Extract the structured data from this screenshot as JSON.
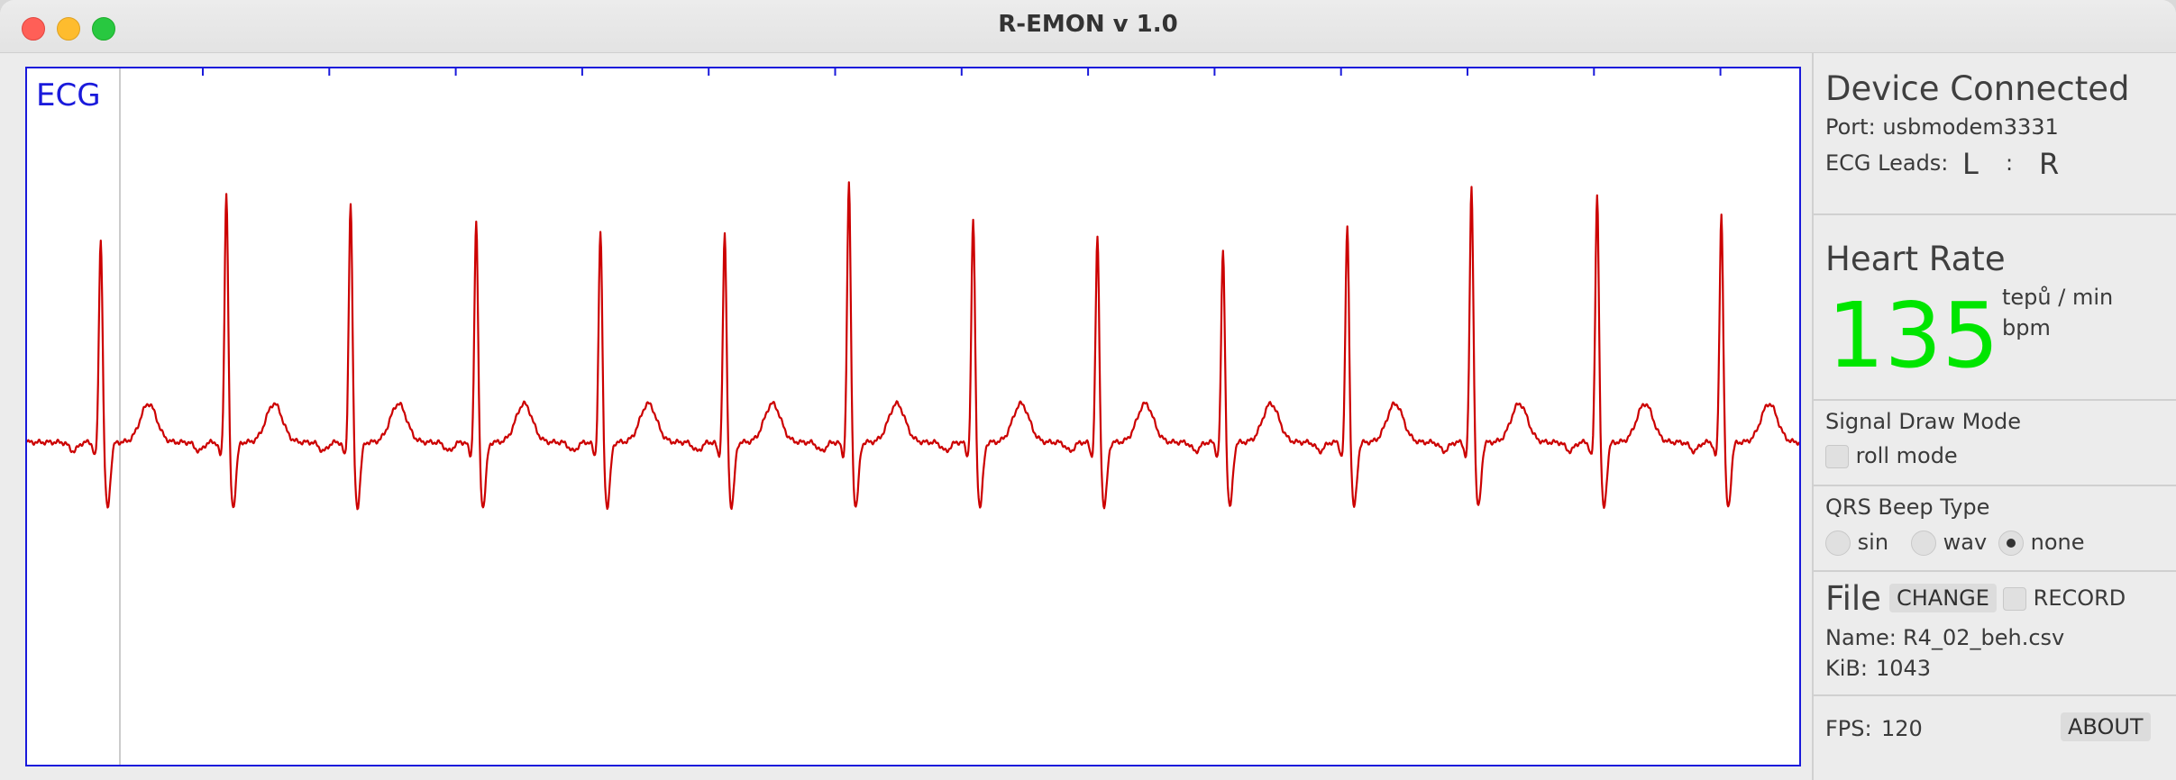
{
  "window": {
    "title": "R-EMON v 1.0"
  },
  "plot": {
    "label": "ECG",
    "colors": {
      "signal": "#cc0000",
      "frame": "#1a1adb",
      "cursor": "#cccccc"
    }
  },
  "device": {
    "status": "Device Connected",
    "port_label": "Port:",
    "port_value": "usbmodem3331",
    "leads_label": "ECG Leads:",
    "lead_left": "L",
    "lead_sep": ":",
    "lead_right": "R"
  },
  "heart_rate": {
    "title": "Heart Rate",
    "value": "135",
    "unit_cz": "tepů / min",
    "unit_en": "bpm",
    "value_color": "#00e500"
  },
  "draw_mode": {
    "title": "Signal Draw Mode",
    "roll_label": "roll mode",
    "roll_checked": false
  },
  "beep": {
    "title": "QRS Beep Type",
    "options": [
      "sin",
      "wav",
      "none"
    ],
    "selected": "none"
  },
  "file": {
    "title": "File",
    "change_label": "CHANGE",
    "record_label": "RECORD",
    "name_label": "Name:",
    "name_value": "R4_02_beh.csv",
    "size_label": "KiB:",
    "size_value": "1043"
  },
  "footer": {
    "fps_label": "FPS:",
    "fps_value": "120",
    "about_label": "ABOUT"
  }
}
